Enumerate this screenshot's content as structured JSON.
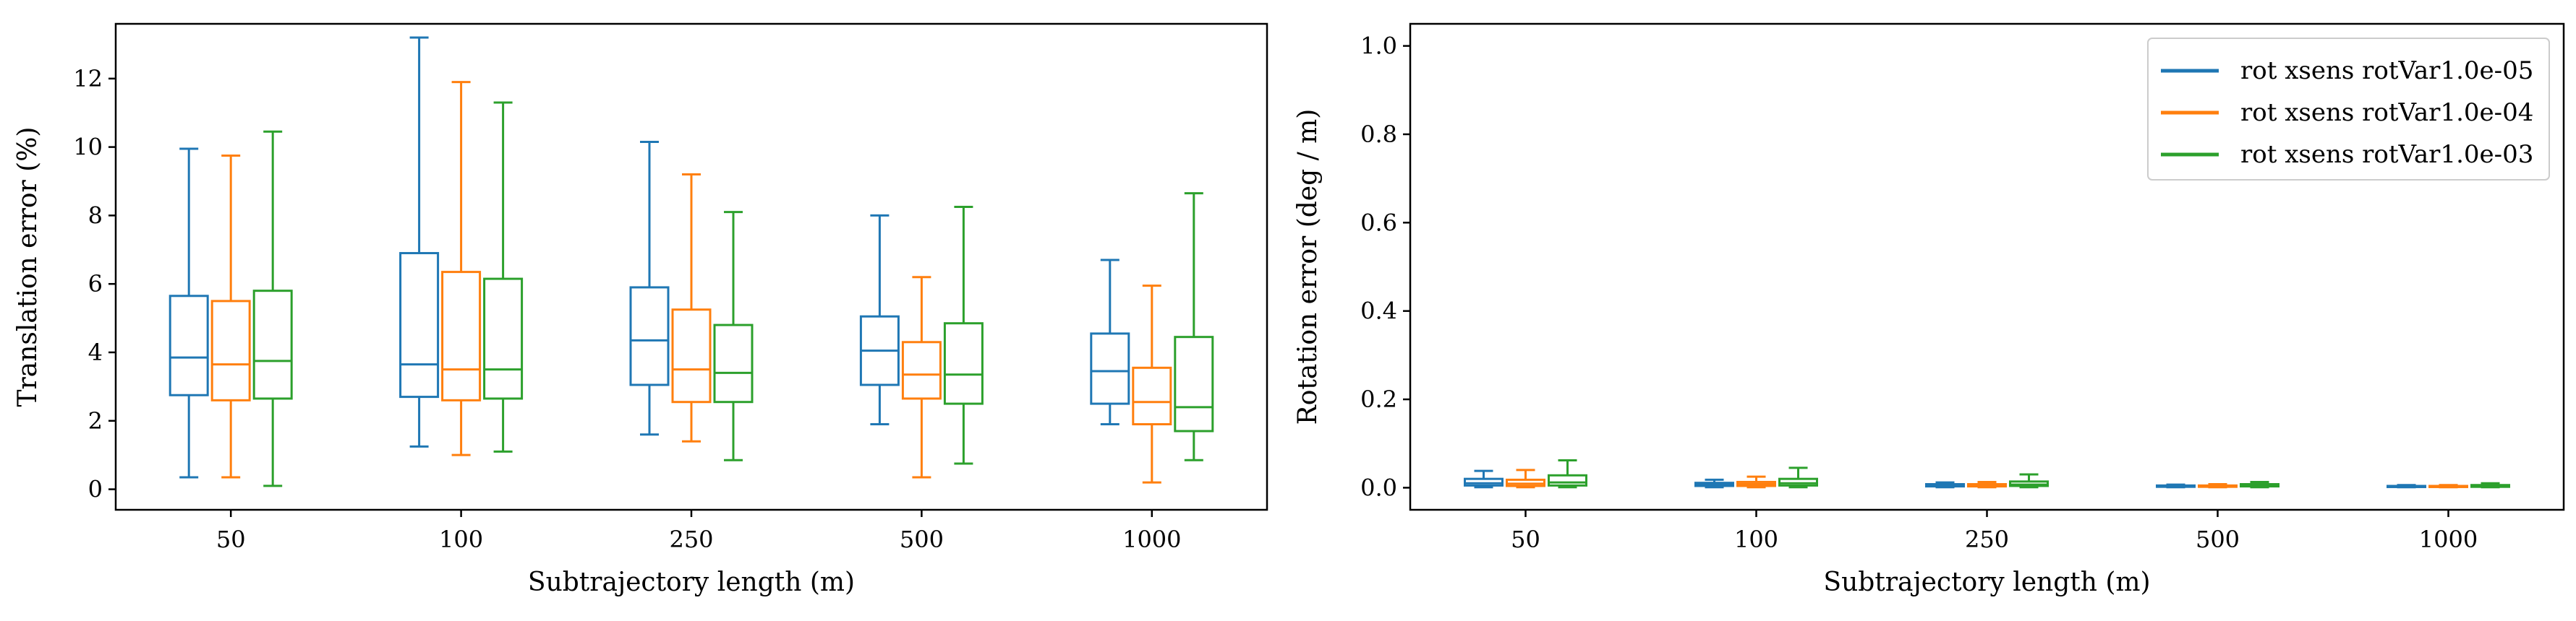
{
  "colors": {
    "series1": "#1f77b4",
    "series2": "#ff7f0e",
    "series3": "#2ca02c"
  },
  "chart_data": [
    {
      "type": "box",
      "xlabel": "Subtrajectory length (m)",
      "ylabel": "Translation error (%)",
      "categories": [
        "50",
        "100",
        "250",
        "500",
        "1000"
      ],
      "ylim": [
        -0.6,
        13.6
      ],
      "yticks": [
        0,
        2,
        4,
        6,
        8,
        10,
        12
      ],
      "ytick_labels": [
        "0",
        "2",
        "4",
        "6",
        "8",
        "10",
        "12"
      ],
      "grid": false,
      "legend": null,
      "series": [
        {
          "name": "rot xsens rotVar1.0e-05",
          "color": "#1f77b4",
          "boxes": [
            {
              "min": 0.35,
              "q1": 2.75,
              "median": 3.85,
              "q3": 5.65,
              "max": 9.95
            },
            {
              "min": 1.25,
              "q1": 2.7,
              "median": 3.65,
              "q3": 6.9,
              "max": 13.2
            },
            {
              "min": 1.6,
              "q1": 3.05,
              "median": 4.35,
              "q3": 5.9,
              "max": 10.15
            },
            {
              "min": 1.9,
              "q1": 3.05,
              "median": 4.05,
              "q3": 5.05,
              "max": 8.0
            },
            {
              "min": 1.9,
              "q1": 2.5,
              "median": 3.45,
              "q3": 4.55,
              "max": 6.7
            }
          ]
        },
        {
          "name": "rot xsens rotVar1.0e-04",
          "color": "#ff7f0e",
          "boxes": [
            {
              "min": 0.35,
              "q1": 2.6,
              "median": 3.65,
              "q3": 5.5,
              "max": 9.75
            },
            {
              "min": 1.0,
              "q1": 2.6,
              "median": 3.5,
              "q3": 6.35,
              "max": 11.9
            },
            {
              "min": 1.4,
              "q1": 2.55,
              "median": 3.5,
              "q3": 5.25,
              "max": 9.2
            },
            {
              "min": 0.35,
              "q1": 2.65,
              "median": 3.35,
              "q3": 4.3,
              "max": 6.2
            },
            {
              "min": 0.2,
              "q1": 1.9,
              "median": 2.55,
              "q3": 3.55,
              "max": 5.95
            }
          ]
        },
        {
          "name": "rot xsens rotVar1.0e-03",
          "color": "#2ca02c",
          "boxes": [
            {
              "min": 0.1,
              "q1": 2.65,
              "median": 3.75,
              "q3": 5.8,
              "max": 10.45
            },
            {
              "min": 1.1,
              "q1": 2.65,
              "median": 3.5,
              "q3": 6.15,
              "max": 11.3
            },
            {
              "min": 0.85,
              "q1": 2.55,
              "median": 3.4,
              "q3": 4.8,
              "max": 8.1
            },
            {
              "min": 0.75,
              "q1": 2.5,
              "median": 3.35,
              "q3": 4.85,
              "max": 8.25
            },
            {
              "min": 0.85,
              "q1": 1.7,
              "median": 2.4,
              "q3": 4.45,
              "max": 8.65
            }
          ]
        }
      ]
    },
    {
      "type": "box",
      "xlabel": "Subtrajectory length (m)",
      "ylabel": "Rotation error (deg / m)",
      "categories": [
        "50",
        "100",
        "250",
        "500",
        "1000"
      ],
      "ylim": [
        -0.05,
        1.05
      ],
      "yticks": [
        0.0,
        0.2,
        0.4,
        0.6,
        0.8,
        1.0
      ],
      "ytick_labels": [
        "0.0",
        "0.2",
        "0.4",
        "0.6",
        "0.8",
        "1.0"
      ],
      "grid": false,
      "legend": "top-right",
      "series": [
        {
          "name": "rot xsens rotVar1.0e-05",
          "color": "#1f77b4",
          "boxes": [
            {
              "min": 0.001,
              "q1": 0.005,
              "median": 0.01,
              "q3": 0.02,
              "max": 0.038
            },
            {
              "min": 0.001,
              "q1": 0.004,
              "median": 0.007,
              "q3": 0.011,
              "max": 0.018
            },
            {
              "min": 0.001,
              "q1": 0.003,
              "median": 0.005,
              "q3": 0.008,
              "max": 0.012
            },
            {
              "min": 0.001,
              "q1": 0.002,
              "median": 0.004,
              "q3": 0.005,
              "max": 0.007
            },
            {
              "min": 0.001,
              "q1": 0.002,
              "median": 0.003,
              "q3": 0.004,
              "max": 0.006
            }
          ]
        },
        {
          "name": "rot xsens rotVar1.0e-04",
          "color": "#ff7f0e",
          "boxes": [
            {
              "min": 0.001,
              "q1": 0.004,
              "median": 0.009,
              "q3": 0.018,
              "max": 0.04
            },
            {
              "min": 0.001,
              "q1": 0.004,
              "median": 0.008,
              "q3": 0.013,
              "max": 0.025
            },
            {
              "min": 0.001,
              "q1": 0.003,
              "median": 0.005,
              "q3": 0.008,
              "max": 0.013
            },
            {
              "min": 0.001,
              "q1": 0.002,
              "median": 0.004,
              "q3": 0.005,
              "max": 0.008
            },
            {
              "min": 0.001,
              "q1": 0.002,
              "median": 0.003,
              "q3": 0.004,
              "max": 0.006
            }
          ]
        },
        {
          "name": "rot xsens rotVar1.0e-03",
          "color": "#2ca02c",
          "boxes": [
            {
              "min": 0.001,
              "q1": 0.005,
              "median": 0.012,
              "q3": 0.028,
              "max": 0.062
            },
            {
              "min": 0.001,
              "q1": 0.005,
              "median": 0.01,
              "q3": 0.02,
              "max": 0.045
            },
            {
              "min": 0.001,
              "q1": 0.004,
              "median": 0.007,
              "q3": 0.014,
              "max": 0.03
            },
            {
              "min": 0.001,
              "q1": 0.003,
              "median": 0.005,
              "q3": 0.008,
              "max": 0.013
            },
            {
              "min": 0.001,
              "q1": 0.002,
              "median": 0.004,
              "q3": 0.006,
              "max": 0.01
            }
          ]
        }
      ]
    }
  ]
}
